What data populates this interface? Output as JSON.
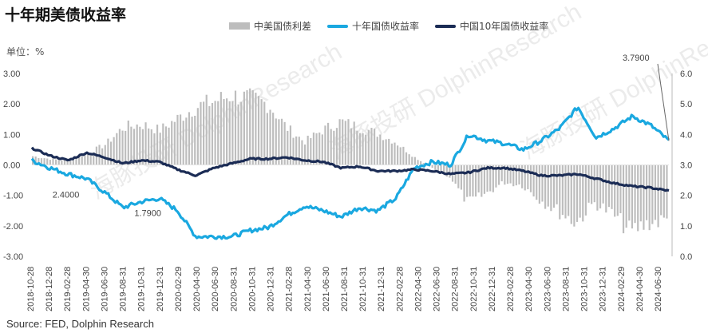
{
  "chart_data": {
    "type": "bar+line",
    "title": "十年期美债收益率",
    "unit_label": "单位：%",
    "source": "Source: FED, Dolphin Research",
    "watermark": "海豚投研 DolphinResearch",
    "dates": [
      "2018-10-28",
      "2018-12-28",
      "2019-02-28",
      "2019-04-30",
      "2019-06-30",
      "2019-08-31",
      "2019-10-31",
      "2019-12-31",
      "2020-02-29",
      "2020-04-30",
      "2020-06-30",
      "2020-08-31",
      "2020-10-31",
      "2020-12-31",
      "2021-02-28",
      "2021-04-30",
      "2021-06-30",
      "2021-08-31",
      "2021-10-31",
      "2021-12-31",
      "2022-02-28",
      "2022-04-30",
      "2022-06-30",
      "2022-08-31",
      "2022-10-31",
      "2022-12-31",
      "2023-02-28",
      "2023-04-30",
      "2023-06-30",
      "2023-08-31",
      "2023-10-31",
      "2023-12-31",
      "2024-02-29",
      "2024-04-30",
      "2024-06-30",
      "2024-08-20"
    ],
    "left_axis": {
      "min": -3.0,
      "max": 3.0,
      "ticks": [
        "3.00",
        "2.00",
        "1.00",
        "0.00",
        "-1.00",
        "-2.00",
        "-3.00"
      ]
    },
    "right_axis": {
      "min": 0.0,
      "max": 6.0,
      "ticks": [
        "6.0",
        "5.0",
        "4.0",
        "3.0",
        "2.0",
        "1.0",
        "0.0"
      ]
    },
    "series": [
      {
        "name": "中美国债利差",
        "type": "bar",
        "axis": "left",
        "color": "#bdbdbd",
        "values": [
          0.3,
          0.2,
          0.15,
          0.4,
          0.7,
          1.3,
          1.4,
          1.2,
          1.6,
          2.0,
          2.2,
          2.4,
          2.3,
          2.1,
          1.3,
          0.8,
          1.2,
          1.5,
          1.3,
          1.1,
          0.8,
          0.3,
          -0.1,
          -0.4,
          -1.3,
          -1.0,
          -0.6,
          -0.7,
          -1.2,
          -1.6,
          -2.0,
          -1.3,
          -1.7,
          -2.3,
          -2.0,
          -1.9
        ]
      },
      {
        "name": "十年国债收益率",
        "type": "line",
        "axis": "right",
        "color": "#1aa8e0",
        "values": [
          3.15,
          2.9,
          2.7,
          2.55,
          2.1,
          1.6,
          1.79,
          1.9,
          1.5,
          0.65,
          0.65,
          0.65,
          0.85,
          0.95,
          1.35,
          1.65,
          1.5,
          1.3,
          1.6,
          1.5,
          1.9,
          2.9,
          3.1,
          3.0,
          4.0,
          3.8,
          3.7,
          3.5,
          3.8,
          4.2,
          4.9,
          3.9,
          4.2,
          4.6,
          4.3,
          3.79
        ]
      },
      {
        "name": "中国10年国债收益率",
        "type": "line",
        "axis": "right",
        "color": "#1b2c55",
        "values": [
          3.55,
          3.3,
          3.15,
          3.4,
          3.25,
          3.05,
          3.15,
          3.1,
          2.85,
          2.65,
          2.9,
          3.05,
          3.2,
          3.2,
          3.25,
          3.15,
          3.1,
          2.9,
          2.95,
          2.8,
          2.8,
          2.85,
          2.8,
          2.7,
          2.75,
          2.9,
          2.9,
          2.8,
          2.65,
          2.65,
          2.7,
          2.55,
          2.4,
          2.3,
          2.25,
          2.15
        ]
      }
    ],
    "annotations": [
      {
        "text": "2.4000",
        "date": "2019-01-31",
        "value": 2.4
      },
      {
        "text": "1.7900",
        "date": "2019-10-31",
        "value": 1.79
      },
      {
        "text": "3.7900",
        "date": "2024-08-20",
        "value": 3.79
      }
    ],
    "legend_position": "top",
    "grid": false
  }
}
